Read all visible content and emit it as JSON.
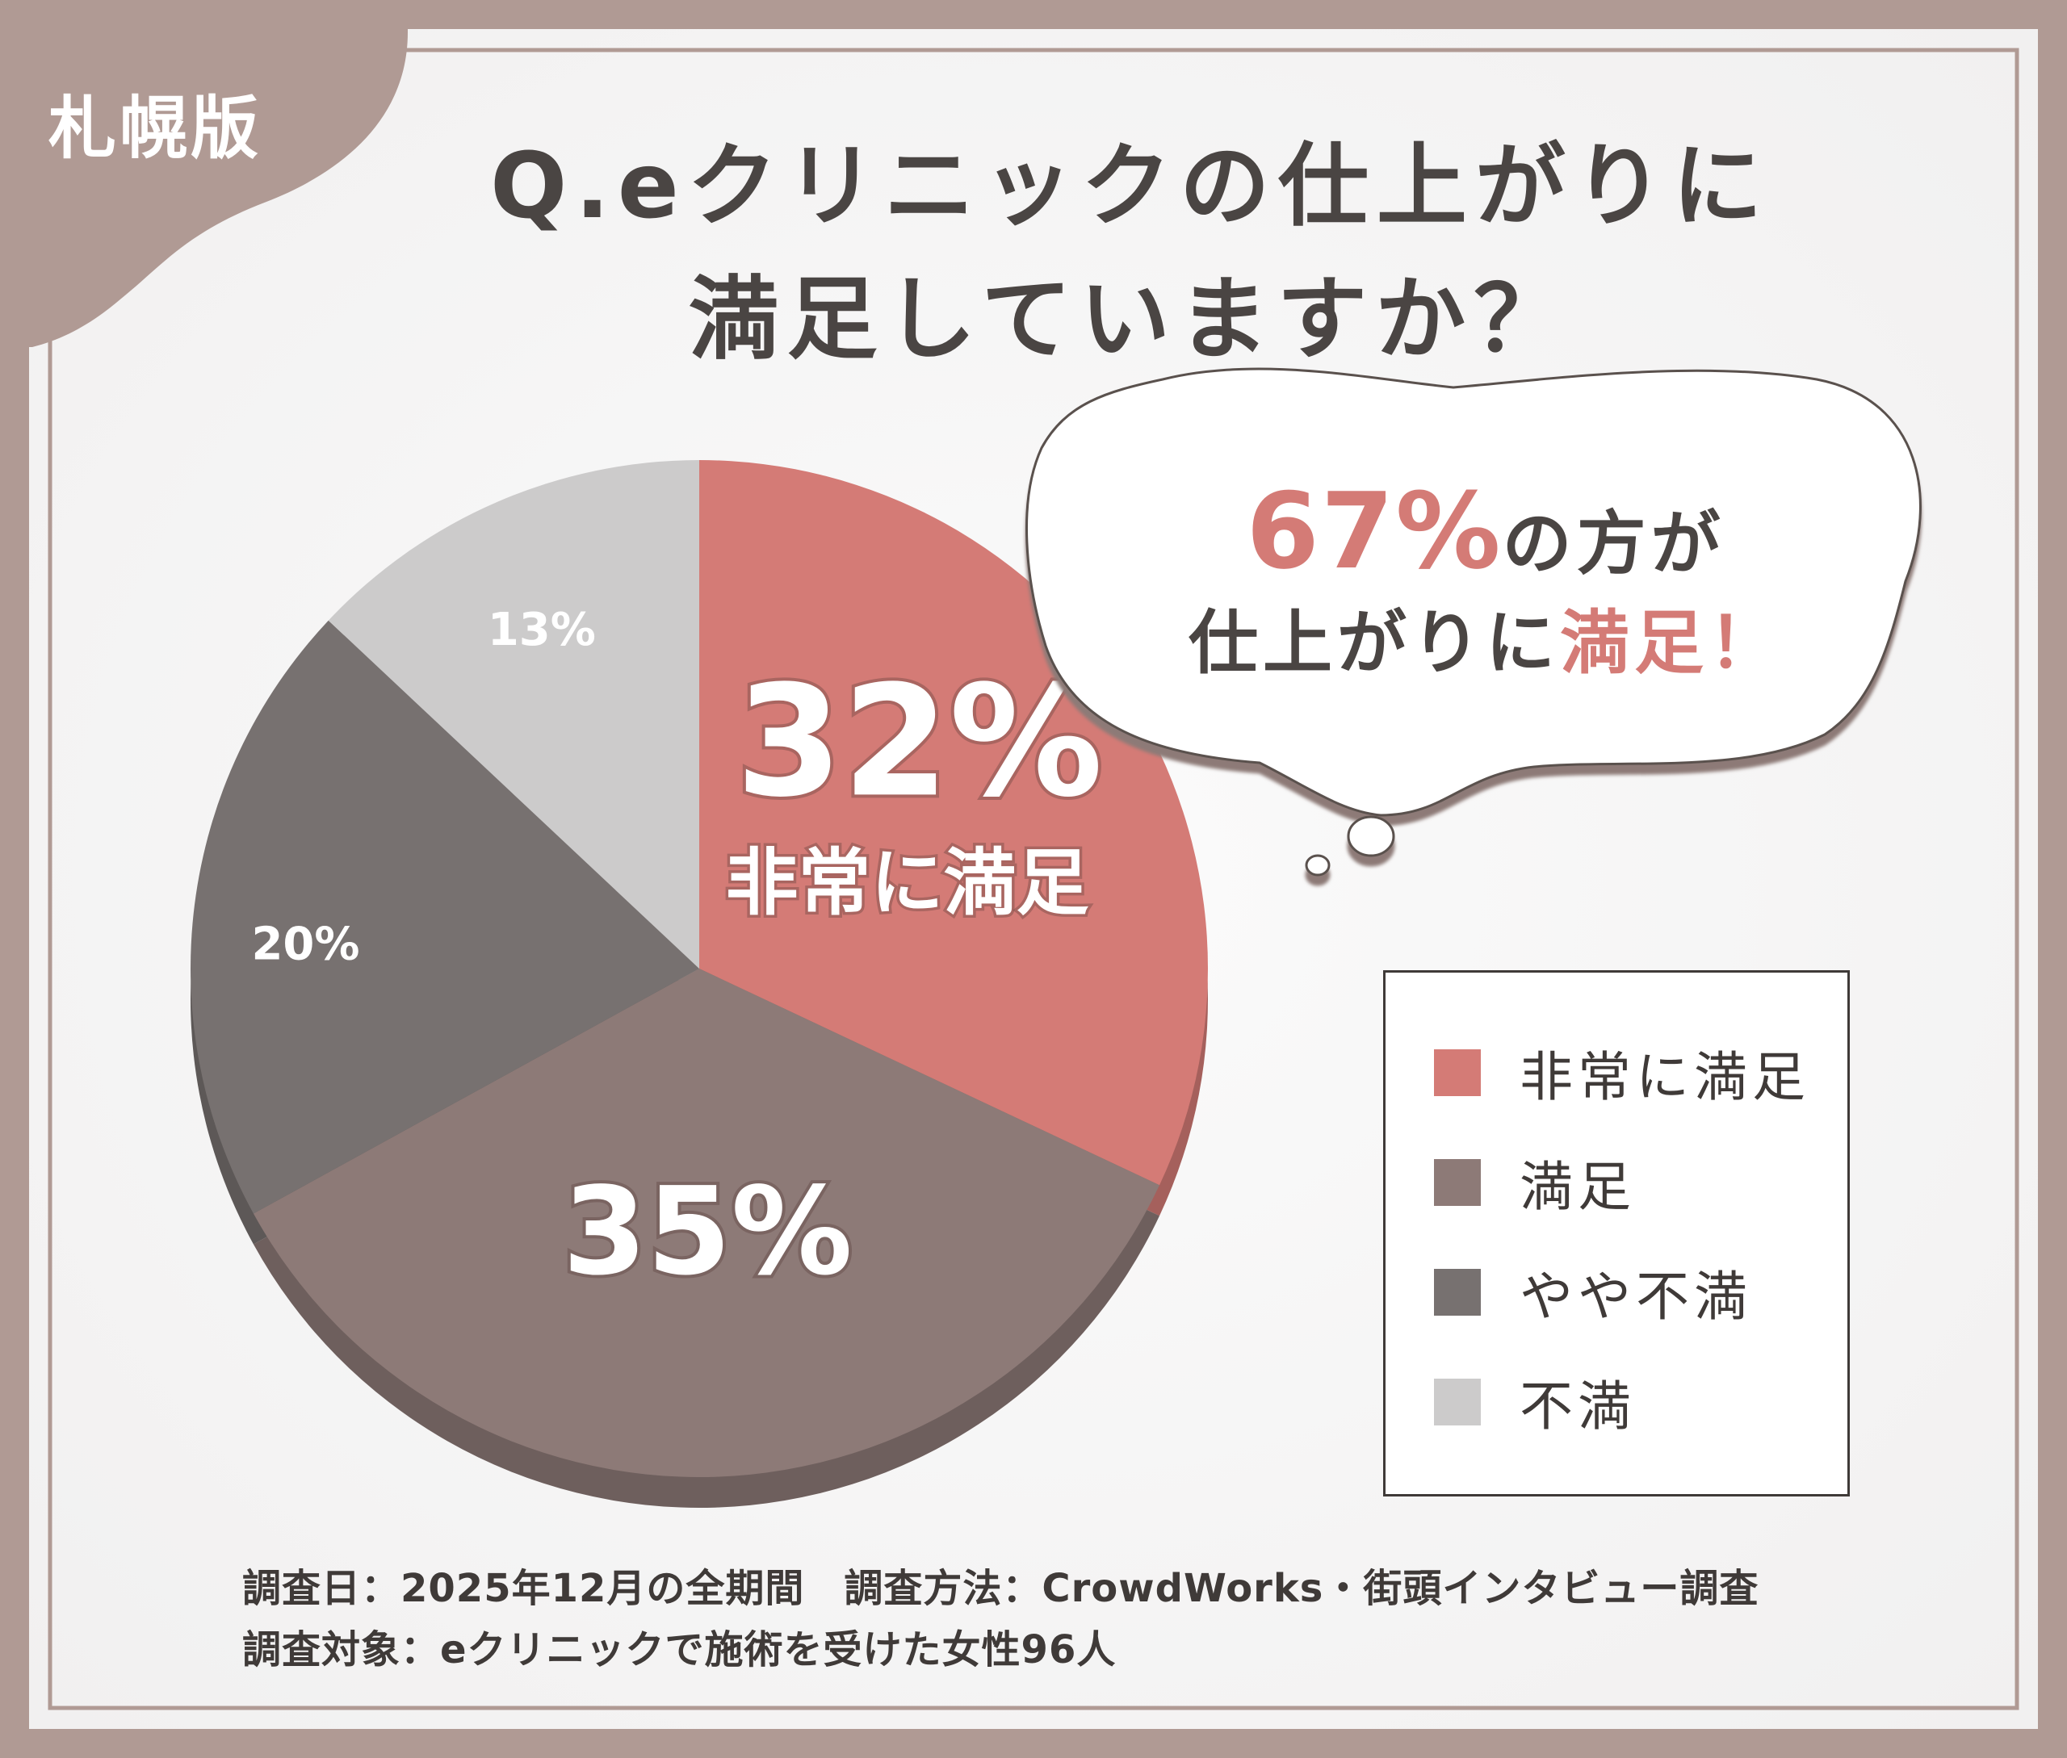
{
  "region_label": "札幌版",
  "title": {
    "line1": "Q.eクリニックの仕上がりに",
    "line2": "満足していますか？"
  },
  "callout": {
    "percent": "67%",
    "line1_suffix": "の方が",
    "line2_prefix": "仕上がりに",
    "line2_accent": "満足！"
  },
  "chart_data": {
    "type": "pie",
    "categories": [
      "非常に満足",
      "満足",
      "やや不満",
      "不満"
    ],
    "values": [
      32,
      35,
      20,
      13
    ],
    "value_labels": [
      "32%",
      "35%",
      "20%",
      "13%"
    ],
    "highlight_label": "非常に満足",
    "colors": [
      "#d47b76",
      "#8d7a77",
      "#777170",
      "#cccbcb"
    ],
    "start": "12 o'clock",
    "direction": "clockwise",
    "legend_position": "right"
  },
  "legend": {
    "items": [
      {
        "label": "非常に満足",
        "color": "#d47b76"
      },
      {
        "label": "満足",
        "color": "#8d7a77"
      },
      {
        "label": "やや不満",
        "color": "#777170"
      },
      {
        "label": "不満",
        "color": "#cccbcb"
      }
    ]
  },
  "footer": {
    "line1": "調査日：2025年12月の全期間　調査方法：CrowdWorks・街頭インタビュー調査",
    "line2": "調査対象：eクリニックで施術を受けた女性96人"
  }
}
